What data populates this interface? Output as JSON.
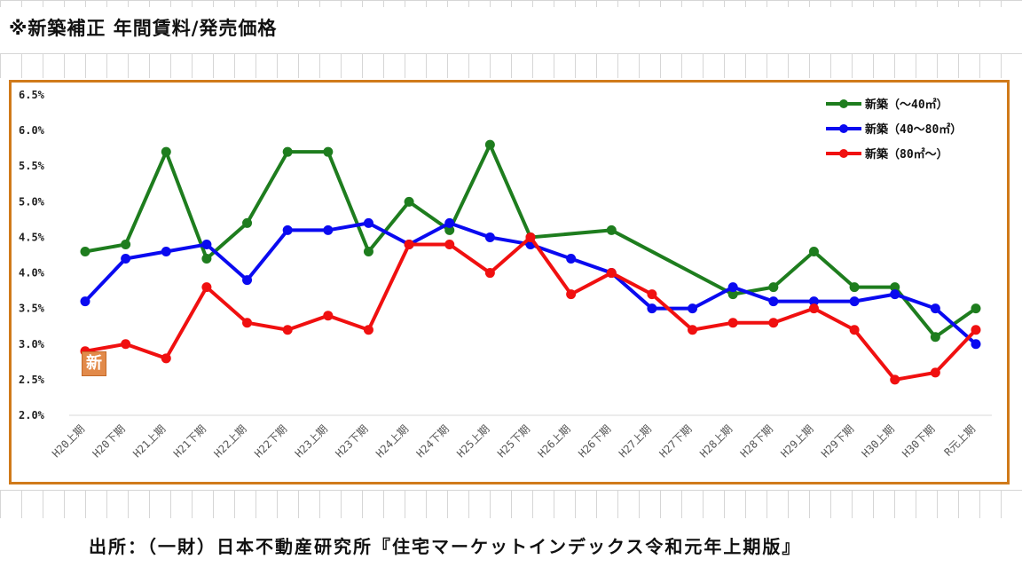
{
  "header": {
    "title": "※新築補正 年間賃料/発売価格"
  },
  "footer": {
    "source": "出所：（一財）日本不動産研究所『住宅マーケットインデックス令和元年上期版』"
  },
  "badge": {
    "text": "新"
  },
  "chart_data": {
    "type": "line",
    "title": "",
    "xlabel": "",
    "ylabel": "",
    "ylim": [
      2.0,
      6.5
    ],
    "yticks": [
      "2.0%",
      "2.5%",
      "3.0%",
      "3.5%",
      "4.0%",
      "4.5%",
      "5.0%",
      "5.5%",
      "6.0%",
      "6.5%"
    ],
    "categories": [
      "H20上期",
      "H20下期",
      "H21上期",
      "H21下期",
      "H22上期",
      "H22下期",
      "H23上期",
      "H23下期",
      "H24上期",
      "H24下期",
      "H25上期",
      "H25下期",
      "H26上期",
      "H26下期",
      "H27上期",
      "H27下期",
      "H28上期",
      "H28下期",
      "H29上期",
      "H29下期",
      "H30上期",
      "H30下期",
      "R元上期"
    ],
    "series": [
      {
        "name": "新築（～40㎡）",
        "color": "#1e7d1e",
        "points": [
          [
            0,
            4.3
          ],
          [
            1,
            4.4
          ],
          [
            2,
            5.7
          ],
          [
            3,
            4.2
          ],
          [
            4,
            4.7
          ],
          [
            5,
            5.7
          ],
          [
            6,
            5.7
          ],
          [
            7,
            4.3
          ],
          [
            8,
            5.0
          ],
          [
            9,
            4.6
          ],
          [
            10,
            5.8
          ],
          [
            11,
            4.5
          ],
          [
            13,
            4.6
          ],
          [
            16,
            3.7
          ],
          [
            17,
            3.8
          ],
          [
            18,
            4.3
          ],
          [
            19,
            3.8
          ],
          [
            20,
            3.8
          ],
          [
            21,
            3.1
          ],
          [
            22,
            3.5
          ]
        ]
      },
      {
        "name": "新築（40～80㎡）",
        "color": "#0a0af0",
        "points": [
          [
            0,
            3.6
          ],
          [
            1,
            4.2
          ],
          [
            2,
            4.3
          ],
          [
            3,
            4.4
          ],
          [
            4,
            3.9
          ],
          [
            5,
            4.6
          ],
          [
            6,
            4.6
          ],
          [
            7,
            4.7
          ],
          [
            8,
            4.4
          ],
          [
            9,
            4.7
          ],
          [
            10,
            4.5
          ],
          [
            11,
            4.4
          ],
          [
            12,
            4.2
          ],
          [
            13,
            4.0
          ],
          [
            14,
            3.5
          ],
          [
            15,
            3.5
          ],
          [
            16,
            3.8
          ],
          [
            17,
            3.6
          ],
          [
            18,
            3.6
          ],
          [
            19,
            3.6
          ],
          [
            20,
            3.7
          ],
          [
            21,
            3.5
          ],
          [
            22,
            3.0
          ]
        ]
      },
      {
        "name": "新築（80㎡～）",
        "color": "#f01010",
        "points": [
          [
            0,
            2.9
          ],
          [
            1,
            3.0
          ],
          [
            2,
            2.8
          ],
          [
            3,
            3.8
          ],
          [
            4,
            3.3
          ],
          [
            5,
            3.2
          ],
          [
            6,
            3.4
          ],
          [
            7,
            3.2
          ],
          [
            8,
            4.4
          ],
          [
            9,
            4.4
          ],
          [
            10,
            4.0
          ],
          [
            11,
            4.5
          ],
          [
            12,
            3.7
          ],
          [
            13,
            4.0
          ],
          [
            14,
            3.7
          ],
          [
            15,
            3.2
          ],
          [
            16,
            3.3
          ],
          [
            17,
            3.3
          ],
          [
            18,
            3.5
          ],
          [
            19,
            3.2
          ],
          [
            20,
            2.5
          ],
          [
            21,
            2.6
          ],
          [
            22,
            3.2
          ]
        ]
      }
    ],
    "legend_position": "top-right",
    "grid": false
  }
}
